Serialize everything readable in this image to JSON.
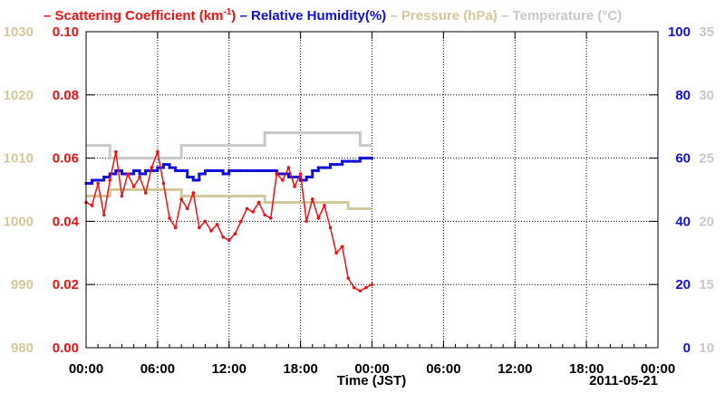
{
  "chart_data": {
    "type": "line",
    "legend": [
      {
        "key": "scattering",
        "label": "Scattering Coefficient (km",
        "sup": "-1",
        "label_tail": ")",
        "color": "#ee1111"
      },
      {
        "key": "humidity",
        "label": "Relative Humidity(%)",
        "color": "#1111dd"
      },
      {
        "key": "pressure",
        "label": "Pressure (hPa)",
        "color": "#d2c89a"
      },
      {
        "key": "temperature",
        "label": "Temperature (°C)",
        "color": "#c8c8c8"
      }
    ],
    "xlabel": "Time (JST)",
    "date_label": "2011-05-21",
    "x_ticks": [
      "00:00",
      "06:00",
      "12:00",
      "18:00",
      "00:00",
      "06:00",
      "12:00",
      "18:00",
      "00:00"
    ],
    "x_range_hours": [
      0,
      48
    ],
    "axes": {
      "scattering": {
        "side": "left-inner",
        "color": "#ee1111",
        "ylim": [
          0,
          0.1
        ],
        "ticks": [
          "0.00",
          "0.02",
          "0.04",
          "0.06",
          "0.08",
          "0.10"
        ]
      },
      "pressure": {
        "side": "left-outer",
        "color": "#d2c89a",
        "ylim": [
          980,
          1030
        ],
        "ticks": [
          "980",
          "990",
          "1000",
          "1010",
          "1020",
          "1030"
        ]
      },
      "humidity": {
        "side": "right-inner",
        "color": "#1111dd",
        "ylim": [
          0,
          100
        ],
        "ticks": [
          "0",
          "20",
          "40",
          "60",
          "80",
          "100"
        ]
      },
      "temperature": {
        "side": "right-outer",
        "color": "#c8c8c8",
        "ylim": [
          10,
          35
        ],
        "ticks": [
          "10",
          "15",
          "20",
          "25",
          "30",
          "35"
        ]
      }
    },
    "grid": true,
    "series": [
      {
        "key": "scattering",
        "x_hours": [
          0,
          0.5,
          1,
          1.5,
          2,
          2.5,
          3,
          3.5,
          4,
          4.5,
          5,
          5.5,
          6,
          6.5,
          7,
          7.5,
          8,
          8.5,
          9,
          9.5,
          10,
          10.5,
          11,
          11.5,
          12,
          12.5,
          13,
          13.5,
          14,
          14.5,
          15,
          15.5,
          16,
          16.5,
          17,
          17.5,
          18,
          18.5,
          19,
          19.5,
          20,
          20.5,
          21,
          21.5,
          22,
          22.5,
          23,
          23.5,
          24
        ],
        "values": [
          0.046,
          0.045,
          0.052,
          0.042,
          0.053,
          0.062,
          0.048,
          0.055,
          0.051,
          0.054,
          0.049,
          0.057,
          0.062,
          0.052,
          0.041,
          0.038,
          0.047,
          0.044,
          0.049,
          0.038,
          0.04,
          0.037,
          0.039,
          0.035,
          0.034,
          0.036,
          0.04,
          0.044,
          0.043,
          0.046,
          0.042,
          0.041,
          0.055,
          0.053,
          0.057,
          0.051,
          0.055,
          0.04,
          0.047,
          0.041,
          0.045,
          0.038,
          0.03,
          0.032,
          0.022,
          0.019,
          0.018,
          0.019,
          0.02
        ]
      },
      {
        "key": "humidity",
        "x_hours": [
          0,
          0.5,
          1,
          1.5,
          2,
          2.5,
          3,
          3.5,
          4,
          4.5,
          5,
          5.5,
          6,
          6.5,
          7,
          7.5,
          8,
          8.5,
          9,
          9.5,
          10,
          10.5,
          11,
          11.5,
          12,
          12.5,
          13,
          13.5,
          14,
          14.5,
          15,
          15.5,
          16,
          16.5,
          17,
          17.5,
          18,
          18.5,
          19,
          19.5,
          20,
          20.5,
          21,
          21.5,
          22,
          22.5,
          23,
          23.5,
          24
        ],
        "values": [
          52,
          53,
          53,
          54,
          55,
          56,
          55,
          55,
          56,
          55,
          56,
          56,
          57,
          58,
          57,
          56,
          56,
          54,
          53,
          55,
          56,
          56,
          56,
          55,
          56,
          56,
          56,
          56,
          56,
          56,
          56,
          56,
          55,
          55,
          54,
          54,
          53,
          54,
          56,
          57,
          57,
          58,
          58,
          59,
          59,
          59,
          60,
          60,
          60
        ]
      },
      {
        "key": "pressure",
        "x_hours": [
          0,
          1,
          2,
          3,
          4,
          5,
          6,
          7,
          8,
          9,
          10,
          11,
          12,
          13,
          14,
          15,
          16,
          17,
          18,
          19,
          20,
          21,
          22,
          23,
          24
        ],
        "values": [
          1004,
          1004,
          1005,
          1005,
          1005,
          1005,
          1005,
          1005,
          1004,
          1004,
          1004,
          1004,
          1004,
          1004,
          1004,
          1003,
          1003,
          1003,
          1003,
          1003,
          1003,
          1003,
          1002,
          1002,
          1002
        ]
      },
      {
        "key": "temperature",
        "x_hours": [
          0,
          1,
          2,
          3,
          4,
          5,
          6,
          7,
          8,
          9,
          10,
          11,
          12,
          13,
          14,
          15,
          16,
          17,
          18,
          19,
          20,
          21,
          22,
          23,
          24
        ],
        "values": [
          26,
          26,
          25,
          25,
          25,
          25,
          25,
          25,
          26,
          26,
          26,
          26,
          26,
          26,
          26,
          27,
          27,
          27,
          27,
          27,
          27,
          27,
          27,
          26,
          26
        ]
      }
    ]
  }
}
